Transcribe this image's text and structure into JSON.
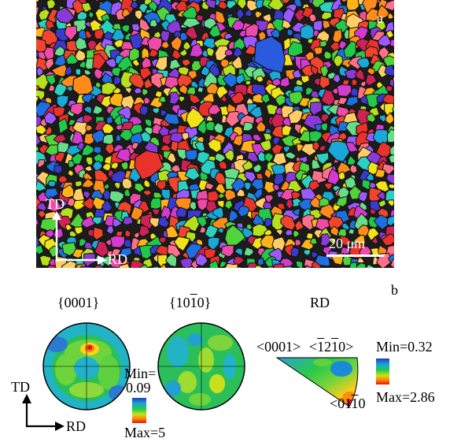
{
  "panel_a": {
    "label": "a",
    "axis_vertical": "TD",
    "axis_horizontal": "RD",
    "scale_bar": "20 μm"
  },
  "panel_b": {
    "label": "b",
    "pole_figure_1_title": "{0001}",
    "pole_figure_2_title_prefix": "{10",
    "pole_figure_2_title_bar": "1",
    "pole_figure_2_title_suffix": "0}",
    "pole_legend_min_label": "Min=",
    "pole_legend_min_value": "0.09",
    "pole_legend_max": "Max=5",
    "axis_vertical": "TD",
    "axis_horizontal": "RD",
    "ipf_title": "RD",
    "ipf_corner_1": "<0001>",
    "ipf_corner_2_prefix": "<",
    "ipf_corner_2_bar1": "1",
    "ipf_corner_2_mid": "2",
    "ipf_corner_2_bar2": "1",
    "ipf_corner_2_suffix": "0>",
    "ipf_corner_3_prefix": "<01",
    "ipf_corner_3_bar": "1",
    "ipf_corner_3_suffix": "0",
    "ipf_min": "Min=0.32",
    "ipf_max": "Max=2.86"
  }
}
